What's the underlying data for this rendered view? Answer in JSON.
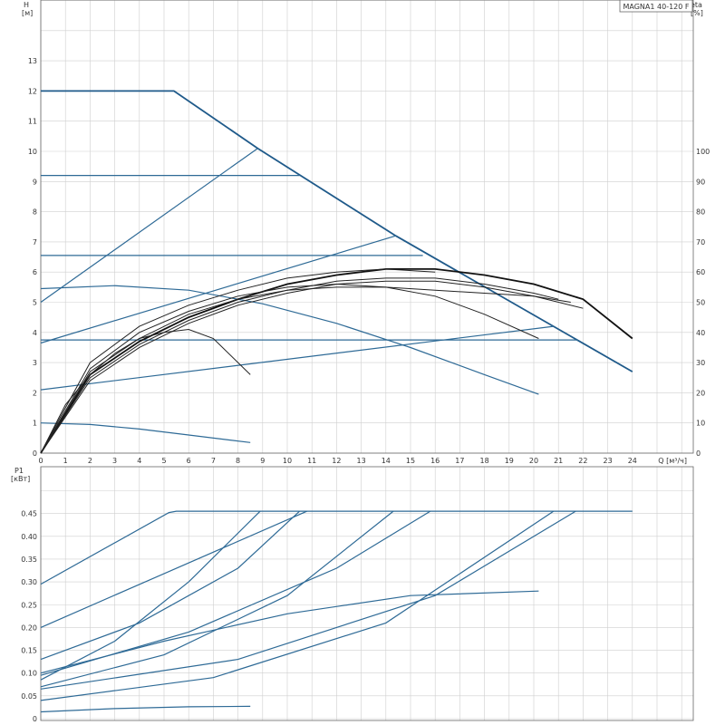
{
  "chart_data": [
    {
      "type": "line",
      "title": "MAGNA1 40-120 F",
      "xlabel": "Q [м³/ч]",
      "ylabel": "H [м]",
      "y2label": "eta [%]",
      "xlim": [
        0,
        25
      ],
      "ylim": [
        0,
        15
      ],
      "y2lim": [
        0,
        150
      ],
      "x_ticks": [
        "0",
        "1",
        "2",
        "3",
        "4",
        "5",
        "6",
        "7",
        "8",
        "9",
        "10",
        "11",
        "12",
        "13",
        "14",
        "15",
        "16",
        "17",
        "18",
        "19",
        "20",
        "21",
        "22",
        "23",
        "24"
      ],
      "y_ticks": [
        "0",
        "1",
        "2",
        "3",
        "4",
        "5",
        "6",
        "7",
        "8",
        "9",
        "10",
        "11",
        "12",
        "13"
      ],
      "y2_ticks": [
        "0",
        "10",
        "20",
        "30",
        "40",
        "50",
        "60",
        "70",
        "80",
        "90",
        "100"
      ],
      "grid": true,
      "series": [
        {
          "color": "#1f5a8a",
          "x": [
            0,
            5.4,
            8.8,
            14.4,
            24
          ],
          "y": [
            12,
            12,
            10.1,
            7.2,
            2.7
          ]
        },
        {
          "color": "#2e6a96",
          "x": [
            0,
            10.5
          ],
          "y": [
            9.2,
            9.2
          ]
        },
        {
          "color": "#2e6a96",
          "x": [
            0,
            15.5
          ],
          "y": [
            6.55,
            6.55
          ]
        },
        {
          "color": "#2e6a96",
          "x": [
            0,
            21.8
          ],
          "y": [
            3.75,
            3.75
          ]
        },
        {
          "color": "#2e6a96",
          "x": [
            0,
            8.8
          ],
          "y": [
            5.0,
            10.1
          ]
        },
        {
          "color": "#2e6a96",
          "x": [
            0,
            14.4
          ],
          "y": [
            3.65,
            7.2
          ]
        },
        {
          "color": "#2e6a96",
          "x": [
            0,
            20.8
          ],
          "y": [
            2.1,
            4.2
          ]
        },
        {
          "color": "#2e6a96",
          "x": [
            0,
            3,
            6,
            9,
            12,
            15,
            18,
            20.2
          ],
          "y": [
            5.45,
            5.55,
            5.4,
            4.95,
            4.3,
            3.5,
            2.6,
            1.95
          ]
        },
        {
          "color": "#2e6a96",
          "x": [
            0,
            2,
            4,
            6,
            8.5
          ],
          "y": [
            1.0,
            0.95,
            0.8,
            0.6,
            0.35
          ]
        },
        {
          "color": "#111111",
          "x": [
            0,
            2,
            4,
            6,
            8,
            10,
            12,
            14,
            16,
            18,
            20,
            22,
            24
          ],
          "eta": [
            0,
            26,
            37,
            45,
            51,
            56,
            59,
            61,
            61,
            59,
            56,
            51,
            38
          ]
        },
        {
          "color": "#222222",
          "x": [
            0,
            2,
            4,
            6,
            8,
            10,
            12,
            14,
            16,
            18,
            20,
            21
          ],
          "eta": [
            0,
            25,
            36,
            44,
            50,
            54,
            57,
            58,
            58,
            56,
            53,
            51
          ]
        },
        {
          "color": "#222222",
          "x": [
            0,
            2,
            4,
            6,
            8,
            10,
            12,
            14,
            16,
            18,
            20.2
          ],
          "eta": [
            0,
            28,
            40,
            47,
            52,
            55,
            56,
            55,
            52,
            46,
            38
          ]
        },
        {
          "color": "#222222",
          "x": [
            0,
            2,
            4,
            6,
            8,
            10,
            12,
            14,
            16,
            18,
            20,
            22
          ],
          "eta": [
            0,
            24,
            35,
            43,
            49,
            53,
            56,
            57,
            57,
            55,
            52,
            48
          ]
        },
        {
          "color": "#222222",
          "x": [
            0,
            2,
            4,
            6,
            8,
            10,
            12,
            14,
            16,
            18,
            20,
            21.5
          ],
          "eta": [
            0,
            27,
            38,
            46,
            51,
            54,
            55,
            55,
            54,
            53,
            52,
            50
          ]
        },
        {
          "color": "#222222",
          "x": [
            0,
            1,
            2,
            3,
            4,
            5,
            6,
            7,
            8.5
          ],
          "eta": [
            0,
            16,
            26,
            33,
            38,
            40,
            41,
            38,
            26
          ]
        },
        {
          "color": "#222222",
          "x": [
            0,
            2,
            4,
            6,
            8,
            10,
            12,
            14,
            16
          ],
          "eta": [
            0,
            30,
            42,
            49,
            54,
            58,
            60,
            61,
            60
          ]
        }
      ]
    },
    {
      "type": "line",
      "xlabel": "",
      "ylabel": "P1 [кВт]",
      "xlim": [
        0,
        25
      ],
      "ylim": [
        0,
        0.5
      ],
      "y_ticks": [
        "0",
        "0.05",
        "0.10",
        "0.15",
        "0.20",
        "0.25",
        "0.30",
        "0.35",
        "0.40",
        "0.45"
      ],
      "grid": true,
      "series": [
        {
          "color": "#2e6a96",
          "x": [
            0,
            5.2,
            5.5,
            24
          ],
          "y": [
            0.295,
            0.452,
            0.455,
            0.455
          ]
        },
        {
          "color": "#2e6a96",
          "x": [
            0,
            10.8
          ],
          "y": [
            0.2,
            0.455
          ]
        },
        {
          "color": "#2e6a96",
          "x": [
            0,
            4,
            8,
            10.5
          ],
          "y": [
            0.13,
            0.21,
            0.33,
            0.455
          ]
        },
        {
          "color": "#2e6a96",
          "x": [
            0,
            6,
            12,
            15.8
          ],
          "y": [
            0.095,
            0.19,
            0.33,
            0.455
          ]
        },
        {
          "color": "#2e6a96",
          "x": [
            0,
            3,
            6,
            8.9
          ],
          "y": [
            0.085,
            0.17,
            0.3,
            0.455
          ]
        },
        {
          "color": "#2e6a96",
          "x": [
            0,
            5,
            10,
            14.3
          ],
          "y": [
            0.07,
            0.14,
            0.27,
            0.455
          ]
        },
        {
          "color": "#2e6a96",
          "x": [
            0,
            8,
            16,
            21.7
          ],
          "y": [
            0.065,
            0.13,
            0.27,
            0.455
          ]
        },
        {
          "color": "#2e6a96",
          "x": [
            0,
            7,
            14,
            20.8
          ],
          "y": [
            0.04,
            0.09,
            0.21,
            0.455
          ]
        },
        {
          "color": "#2e6a96",
          "x": [
            0,
            5,
            10,
            15,
            20.2
          ],
          "y": [
            0.1,
            0.17,
            0.23,
            0.27,
            0.28
          ]
        },
        {
          "color": "#2e6a96",
          "x": [
            0,
            3,
            6,
            8.5
          ],
          "y": [
            0.015,
            0.022,
            0.026,
            0.027
          ]
        }
      ]
    }
  ]
}
